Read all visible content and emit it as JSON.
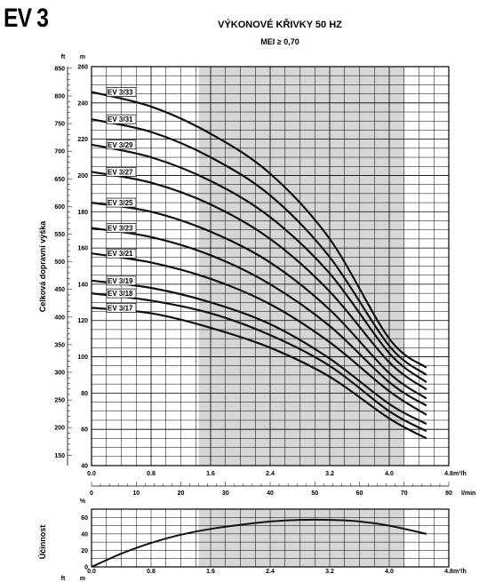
{
  "model": "EV 3",
  "title": "VÝKONOVÉ KŘIVKY 50 HZ",
  "subtitle": "MEI ≥ 0,70",
  "units": {
    "ft": "ft",
    "m": "m",
    "m3h": "m³/h",
    "lmin": "l/min",
    "pct": "%"
  },
  "colors": {
    "shade": "#d6d6d6",
    "grid": "#000000",
    "curve": "#111111"
  },
  "chart_data": [
    {
      "type": "line",
      "ylabel": "Celková dopravní výška",
      "x_range_m3h": [
        0,
        4.8
      ],
      "y_range_m": [
        40,
        260
      ],
      "y_range_ft": [
        131.2,
        853
      ],
      "x2_range_lmin": [
        0,
        80
      ],
      "shaded_region_m3h": [
        1.44,
        4.2
      ],
      "x_ticks_m3h": [
        "0.0",
        "0.8",
        "1.6",
        "2.4",
        "3.2",
        "4.0",
        "4.8"
      ],
      "x2_ticks_lmin": [
        "0",
        "10",
        "20",
        "30",
        "40",
        "50",
        "60",
        "70",
        "80"
      ],
      "y_ticks_m": [
        "40",
        "60",
        "80",
        "100",
        "120",
        "140",
        "160",
        "180",
        "200",
        "220",
        "240",
        "260"
      ],
      "y_ticks_ft": [
        "150",
        "200",
        "250",
        "300",
        "350",
        "400",
        "450",
        "500",
        "550",
        "600",
        "650",
        "700",
        "750",
        "800",
        "850"
      ],
      "series": [
        {
          "name": "EV 3/33",
          "x": [
            0,
            0.8,
            1.6,
            2.4,
            3.2,
            4.0,
            4.5
          ],
          "y": [
            246,
            238,
            223,
            201,
            165,
            110,
            94
          ]
        },
        {
          "name": "EV 3/31",
          "x": [
            0,
            0.8,
            1.6,
            2.4,
            3.2,
            4.0,
            4.5
          ],
          "y": [
            231,
            224,
            210,
            189,
            155,
            106,
            90
          ]
        },
        {
          "name": "EV 3/29",
          "x": [
            0,
            0.8,
            1.6,
            2.4,
            3.2,
            4.0,
            4.5
          ],
          "y": [
            217,
            210,
            197,
            177,
            146,
            102,
            86
          ]
        },
        {
          "name": "EV 3/27",
          "x": [
            0,
            0.8,
            1.6,
            2.4,
            3.2,
            4.0,
            4.5
          ],
          "y": [
            202,
            196,
            184,
            165,
            136,
            97,
            82
          ]
        },
        {
          "name": "EV 3/25",
          "x": [
            0,
            0.8,
            1.6,
            2.4,
            3.2,
            4.0,
            4.5
          ],
          "y": [
            185,
            180,
            169,
            152,
            126,
            91,
            77
          ]
        },
        {
          "name": "EV 3/23",
          "x": [
            0,
            0.8,
            1.6,
            2.4,
            3.2,
            4.0,
            4.5
          ],
          "y": [
            171,
            166,
            156,
            140,
            117,
            86,
            73
          ]
        },
        {
          "name": "EV 3/21",
          "x": [
            0,
            0.8,
            1.6,
            2.4,
            3.2,
            4.0,
            4.5
          ],
          "y": [
            157,
            152,
            143,
            129,
            108,
            81,
            68
          ]
        },
        {
          "name": "EV 3/19",
          "x": [
            0,
            0.8,
            1.6,
            2.4,
            3.2,
            4.0,
            4.5
          ],
          "y": [
            142,
            138,
            130,
            118,
            99,
            74,
            63
          ]
        },
        {
          "name": "EV 3/18",
          "x": [
            0,
            0.8,
            1.6,
            2.4,
            3.2,
            4.0,
            4.5
          ],
          "y": [
            135,
            131,
            124,
            112,
            95,
            70,
            59
          ]
        },
        {
          "name": "EV 3/17",
          "x": [
            0,
            0.8,
            1.6,
            2.4,
            3.2,
            4.0,
            4.5
          ],
          "y": [
            127,
            124,
            116,
            105,
            89,
            66,
            55
          ]
        }
      ]
    },
    {
      "type": "line",
      "ylabel": "Účinnost",
      "x_range_m3h": [
        0,
        4.8
      ],
      "y_range_pct": [
        0,
        70
      ],
      "shaded_region_m3h": [
        1.44,
        4.2
      ],
      "x_ticks_m3h": [
        "0.0",
        "0.8",
        "1.6",
        "2.4",
        "3.2",
        "4.0",
        "4.8"
      ],
      "y_ticks_pct": [
        "0",
        "20",
        "40",
        "60"
      ],
      "series": [
        {
          "name": "",
          "x": [
            0,
            0.4,
            0.8,
            1.2,
            1.6,
            2.0,
            2.4,
            2.8,
            3.2,
            3.6,
            4.0,
            4.5
          ],
          "y": [
            0,
            16,
            29,
            39,
            46,
            51,
            55,
            57,
            57,
            55,
            50,
            40
          ]
        }
      ]
    }
  ]
}
